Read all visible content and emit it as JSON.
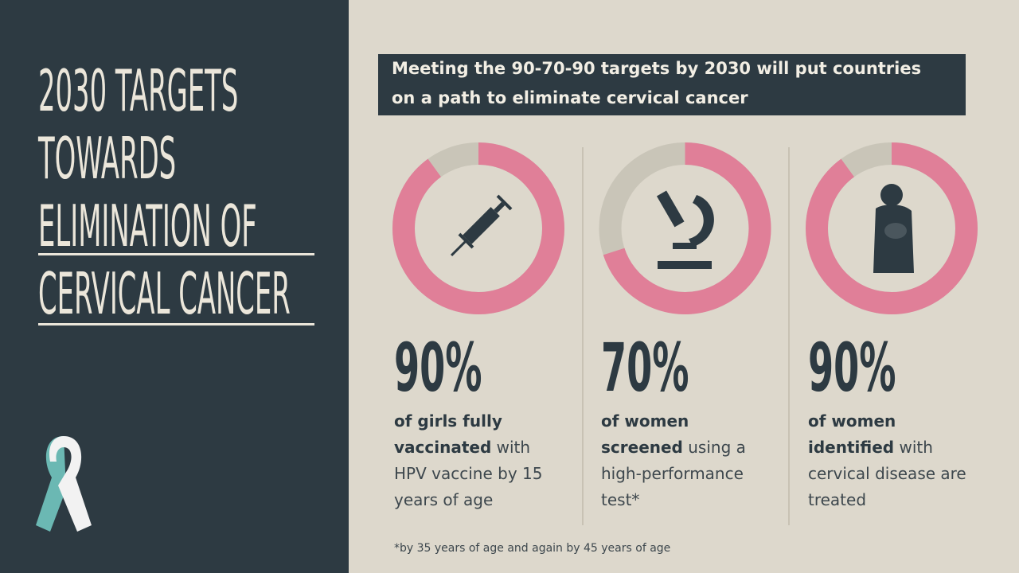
{
  "title": {
    "lines": [
      "2030 TARGETS",
      "TOWARDS",
      "ELIMINATION OF",
      "CERVICAL CANCER"
    ]
  },
  "headline": {
    "lines": [
      "Meeting the 90-70-90 targets by 2030 will put countries",
      "on a path to eliminate cervical cancer"
    ]
  },
  "targets": [
    {
      "value": 90,
      "label": "90%",
      "bold": "of girls fully vaccinated",
      "rest": "with HPV vaccine by 15 years of age"
    },
    {
      "value": 70,
      "label": "70%",
      "bold": "of women screened",
      "rest": "using a high-performance test*"
    },
    {
      "value": 90,
      "label": "90%",
      "bold": "of women identified",
      "rest": "with cervical disease are treated"
    }
  ],
  "footnote": "*by 35 years of age and again by 45 years of age"
}
